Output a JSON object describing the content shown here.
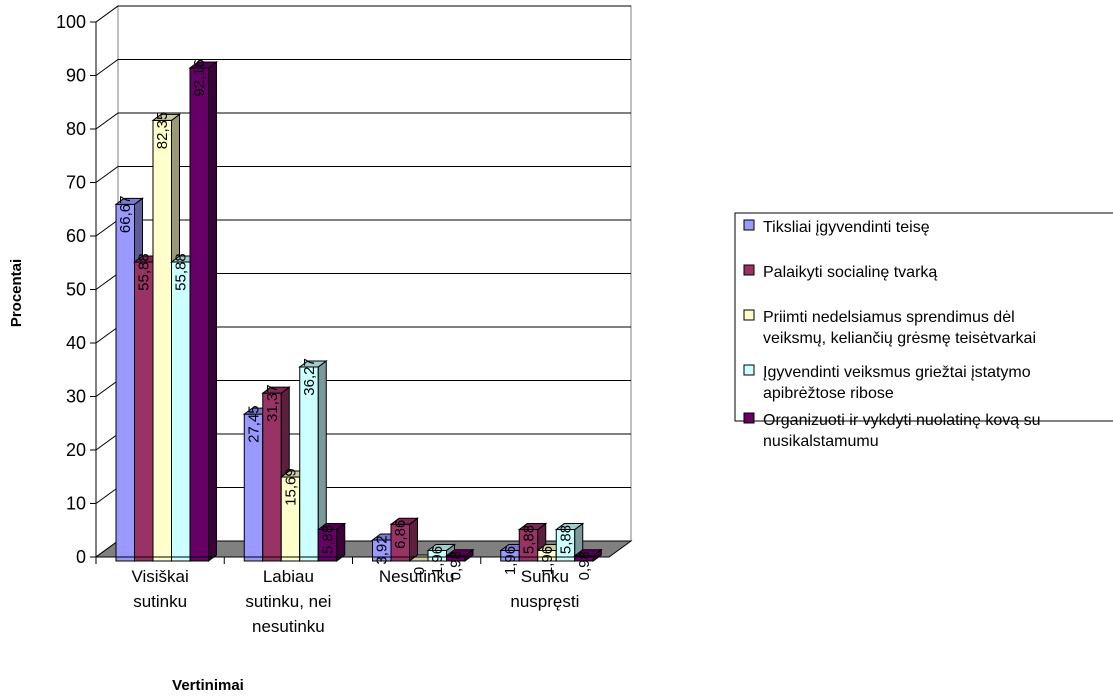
{
  "chart_data": {
    "type": "bar",
    "title": "",
    "xlabel": "Vertinimai",
    "ylabel": "Procentai",
    "ylim": [
      0,
      100
    ],
    "yticks": [
      "0",
      "10",
      "20",
      "30",
      "40",
      "50",
      "60",
      "70",
      "80",
      "90",
      "100"
    ],
    "grid": true,
    "legend_position": "right",
    "categories": [
      [
        "Visiškai",
        "sutinku"
      ],
      [
        "Labiau",
        "sutinku, nei",
        "nesutinku"
      ],
      [
        "Nesutinku"
      ],
      [
        "Sunku",
        "nuspręsti"
      ]
    ],
    "series": [
      {
        "name": "Tiksliai įgyvendinti teisę",
        "color": "#9999ff",
        "values": [
          66.67,
          27.45,
          3.92,
          1.96
        ],
        "labels": [
          "66,67",
          "27,45",
          "3,92",
          "1,96"
        ]
      },
      {
        "name": "Palaikyti socialinę tvarką",
        "color": "#993366",
        "values": [
          55.88,
          31.37,
          6.86,
          5.88
        ],
        "labels": [
          "55,88",
          "31,37",
          "6,86",
          "5,88"
        ]
      },
      {
        "name": "Priimti nedelsiamus sprendimus dėl veiksmų, keliančių grėsmę teisėtvarkai",
        "color": "#ffffcc",
        "values": [
          82.35,
          15.69,
          0,
          1.96
        ],
        "labels": [
          "82,35",
          "15,69",
          "0",
          "1,96"
        ]
      },
      {
        "name": "Įgyvendinti veiksmus griežtai įstatymo apibrėžtose ribose",
        "color": "#ccffff",
        "values": [
          55.88,
          36.27,
          1.96,
          5.88
        ],
        "labels": [
          "55,88",
          "36,27",
          "1,96",
          "5,88"
        ]
      },
      {
        "name": "Organizuoti ir vykdyti nuolatinę kovą su nusikalstamumu",
        "color": "#660066",
        "values": [
          92.16,
          5.88,
          0.98,
          0.98
        ],
        "labels": [
          "92,16",
          "5,88",
          "0,98",
          "0,98"
        ]
      }
    ],
    "legend_lines": [
      [
        "Tiksliai įgyvendinti teisę"
      ],
      [
        "Palaikyti socialinę tvarką"
      ],
      [
        "Priimti nedelsiamus sprendimus dėl",
        "veiksmų, keliančių grėsmę teisėtvarkai"
      ],
      [
        "Įgyvendinti veiksmus griežtai įstatymo",
        "apibrėžtose ribose"
      ],
      [
        "Organizuoti ir vykdyti nuolatinę kovą su",
        "nusikalstamumu"
      ]
    ]
  }
}
